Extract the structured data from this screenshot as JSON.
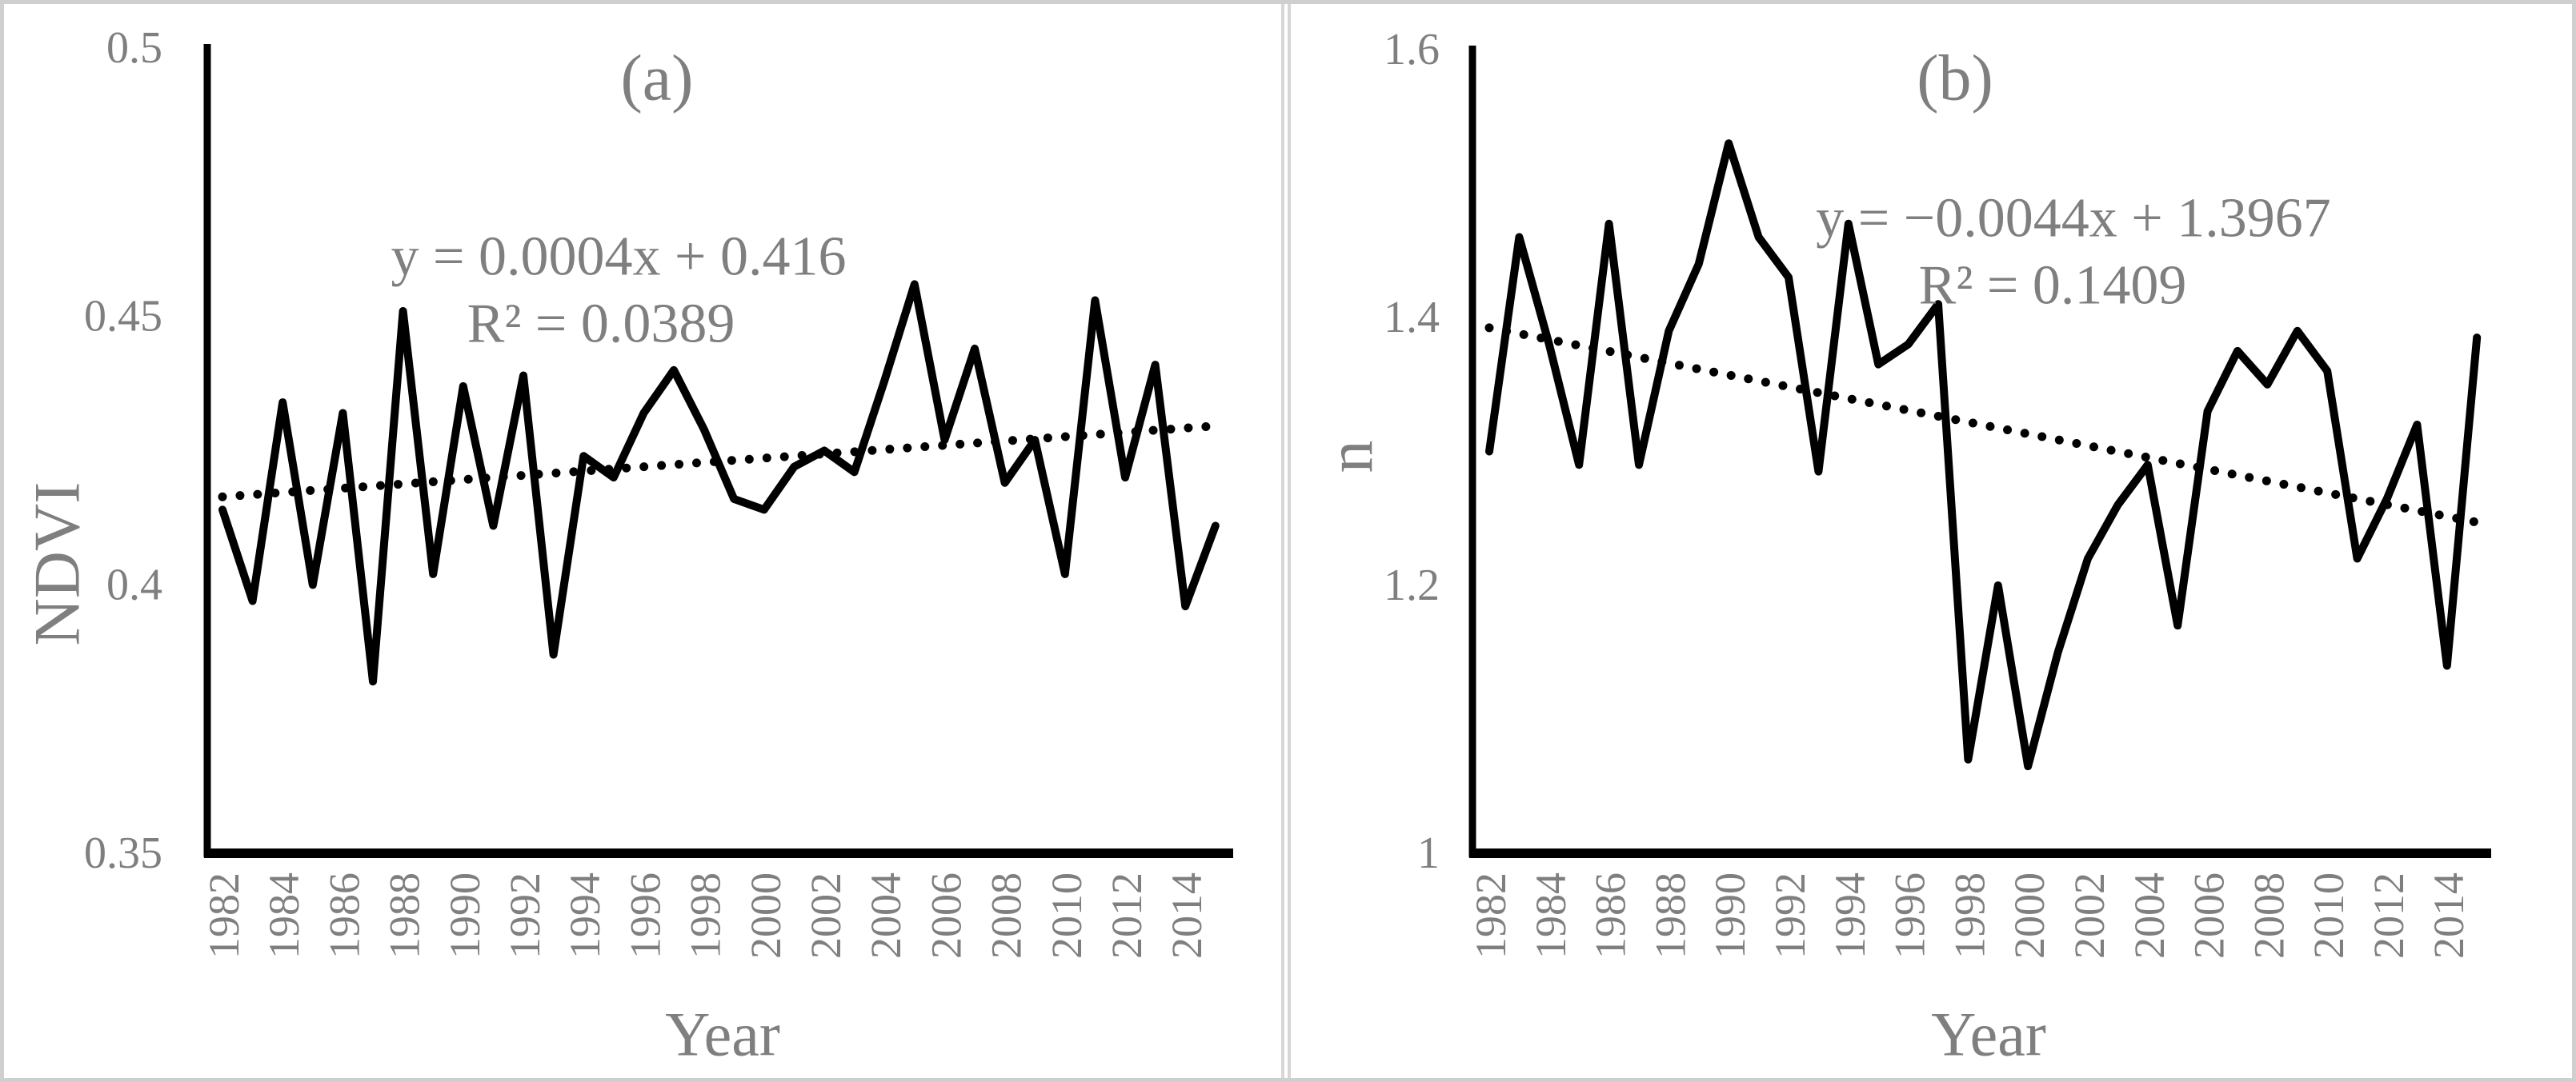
{
  "figure": {
    "background": "#ffffff",
    "frame_color": "#cfcfcf",
    "divider_color": "#d6d6d6",
    "label_color": "#7f7f7f",
    "series_color": "#000000",
    "trendline_color": "#000000"
  },
  "chart_data": [
    {
      "type": "line",
      "panel_label": "(a)",
      "xlabel": "Year",
      "ylabel": "NDVI",
      "ylim": [
        0.35,
        0.5
      ],
      "grid": false,
      "legend": "none",
      "yticks": [
        {
          "v": 0.5,
          "label": "0.5"
        },
        {
          "v": 0.45,
          "label": "0.45"
        },
        {
          "v": 0.4,
          "label": "0.4"
        },
        {
          "v": 0.35,
          "label": "0.35"
        }
      ],
      "xtick_years": [
        1982,
        1984,
        1986,
        1988,
        1990,
        1992,
        1994,
        1996,
        1998,
        2000,
        2002,
        2004,
        2006,
        2008,
        2010,
        2012,
        2014
      ],
      "x": [
        1982,
        1983,
        1984,
        1985,
        1986,
        1987,
        1988,
        1989,
        1990,
        1991,
        1992,
        1993,
        1994,
        1995,
        1996,
        1997,
        1998,
        1999,
        2000,
        2001,
        2002,
        2003,
        2004,
        2005,
        2006,
        2007,
        2008,
        2009,
        2010,
        2011,
        2012,
        2013,
        2014,
        2015
      ],
      "values": [
        0.414,
        0.397,
        0.434,
        0.4,
        0.432,
        0.382,
        0.451,
        0.402,
        0.437,
        0.411,
        0.439,
        0.387,
        0.424,
        0.42,
        0.432,
        0.44,
        0.429,
        0.416,
        0.414,
        0.422,
        0.425,
        0.421,
        0.438,
        0.456,
        0.427,
        0.444,
        0.419,
        0.427,
        0.402,
        0.453,
        0.42,
        0.441,
        0.396,
        0.411
      ],
      "trendline": {
        "slope": 0.0004,
        "intercept": 0.416,
        "style": "dotted"
      },
      "annotation": [
        "y = 0.0004x + 0.416",
        "R² = 0.0389"
      ]
    },
    {
      "type": "line",
      "panel_label": "(b)",
      "xlabel": "Year",
      "ylabel": "n",
      "ylim": [
        1.0,
        1.6
      ],
      "grid": false,
      "legend": "none",
      "yticks": [
        {
          "v": 1.6,
          "label": "1.6"
        },
        {
          "v": 1.4,
          "label": "1.4"
        },
        {
          "v": 1.2,
          "label": "1.2"
        },
        {
          "v": 1.0,
          "label": "1"
        }
      ],
      "xtick_years": [
        1982,
        1984,
        1986,
        1988,
        1990,
        1992,
        1994,
        1996,
        1998,
        2000,
        2002,
        2004,
        2006,
        2008,
        2010,
        2012,
        2014
      ],
      "x": [
        1982,
        1983,
        1984,
        1985,
        1986,
        1987,
        1988,
        1989,
        1990,
        1991,
        1992,
        1993,
        1994,
        1995,
        1996,
        1997,
        1998,
        1999,
        2000,
        2001,
        2002,
        2003,
        2004,
        2005,
        2006,
        2007,
        2008,
        2009,
        2010,
        2011,
        2012,
        2013,
        2014,
        2015
      ],
      "values": [
        1.3,
        1.46,
        1.38,
        1.29,
        1.47,
        1.29,
        1.39,
        1.44,
        1.53,
        1.46,
        1.43,
        1.285,
        1.47,
        1.365,
        1.38,
        1.41,
        1.07,
        1.2,
        1.065,
        1.15,
        1.22,
        1.26,
        1.29,
        1.17,
        1.33,
        1.375,
        1.35,
        1.39,
        1.36,
        1.22,
        1.265,
        1.32,
        1.14,
        1.385
      ],
      "trendline": {
        "slope": -0.0044,
        "intercept": 1.3967,
        "style": "dotted"
      },
      "annotation": [
        "y = −0.0044x + 1.3967",
        "R² = 0.1409"
      ]
    }
  ]
}
